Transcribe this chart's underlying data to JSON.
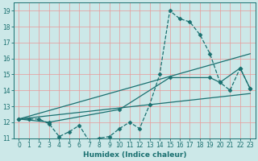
{
  "xlabel": "Humidex (Indice chaleur)",
  "xlim": [
    -0.5,
    23.5
  ],
  "ylim": [
    11,
    19.5
  ],
  "yticks": [
    11,
    12,
    13,
    14,
    15,
    16,
    17,
    18,
    19
  ],
  "xticks": [
    0,
    1,
    2,
    3,
    4,
    5,
    6,
    7,
    8,
    9,
    10,
    11,
    12,
    13,
    14,
    15,
    16,
    17,
    18,
    19,
    20,
    21,
    22,
    23
  ],
  "bg_color": "#cce8e8",
  "line_color": "#1a7070",
  "grid_color": "#e89898",
  "series": [
    {
      "x": [
        0,
        1,
        2,
        3,
        4,
        5,
        6,
        7,
        8,
        9,
        10,
        11,
        12,
        13,
        14,
        15,
        16,
        17,
        18,
        19,
        20,
        21,
        22,
        23
      ],
      "y": [
        12.2,
        12.2,
        12.2,
        11.9,
        11.1,
        11.4,
        11.8,
        10.8,
        11.0,
        11.1,
        11.6,
        12.0,
        11.6,
        13.1,
        15.0,
        19.0,
        18.5,
        18.3,
        17.5,
        16.3,
        14.5,
        14.0,
        15.4,
        14.1
      ],
      "style": "--",
      "marker": "D",
      "markersize": 2.5
    },
    {
      "x": [
        0,
        23
      ],
      "y": [
        12.2,
        16.3
      ],
      "style": "-",
      "marker": null,
      "markersize": 0
    },
    {
      "x": [
        0,
        23
      ],
      "y": [
        12.2,
        13.8
      ],
      "style": "-",
      "marker": null,
      "markersize": 0
    },
    {
      "x": [
        0,
        3,
        10,
        15,
        19,
        20,
        22,
        23
      ],
      "y": [
        12.2,
        12.0,
        12.8,
        14.8,
        14.8,
        14.5,
        15.4,
        14.1
      ],
      "style": "-",
      "marker": "D",
      "markersize": 2.5
    }
  ]
}
